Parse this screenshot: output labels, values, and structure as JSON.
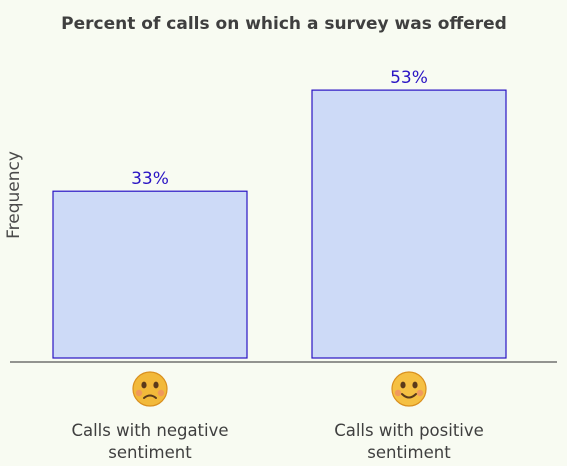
{
  "chart_data": {
    "type": "bar",
    "title": "Percent of calls on which a survey was offered",
    "xlabel": "",
    "ylabel": "Frequency",
    "ylim": [
      0,
      55
    ],
    "grid": false,
    "categories": [
      {
        "lines": [
          "Calls with negative",
          "sentiment"
        ],
        "icon": "sad-face-icon"
      },
      {
        "lines": [
          "Calls with positive",
          "sentiment"
        ],
        "icon": "happy-face-icon"
      }
    ],
    "values": [
      33,
      53
    ],
    "data_labels": [
      "33%",
      "53%"
    ],
    "colors": {
      "bar_fill": "#cddaf7",
      "bar_stroke": "#2a14c4",
      "label": "#2a14c4"
    }
  }
}
